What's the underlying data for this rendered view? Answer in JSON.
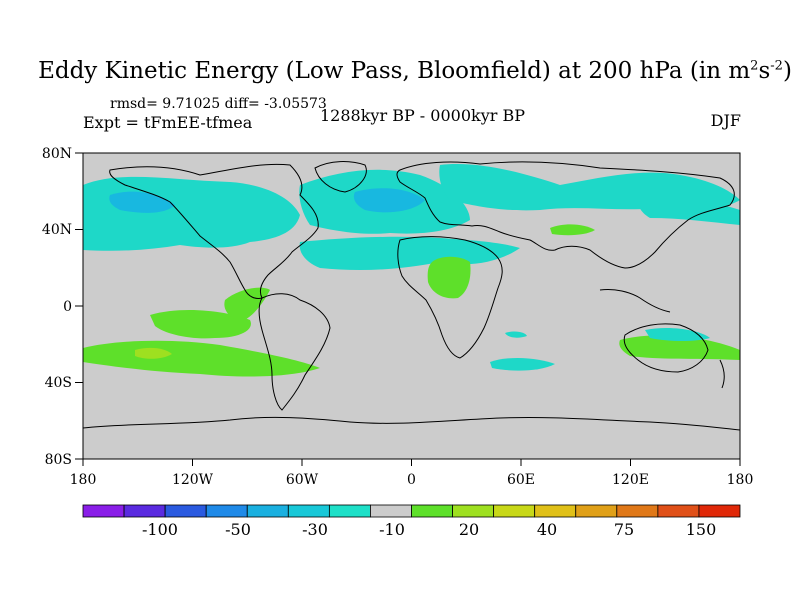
{
  "title": {
    "main": "Eddy Kinetic Energy (Low Pass, Bloomfield) at 200 hPa (in m",
    "sup1": "2",
    "mid": "s",
    "sup2": "-2",
    "end": ")"
  },
  "stats": "rmsd= 9.71025  diff= -3.05573",
  "experiment": "Expt = tFmEE-tfmea",
  "period": "1288kyr BP - 0000kyr BP",
  "season": "DJF",
  "axes": {
    "lat_labels": [
      "80N",
      "40N",
      "0",
      "40S",
      "80S"
    ],
    "lon_labels": [
      "180",
      "120W",
      "60W",
      "0",
      "60E",
      "120E",
      "180"
    ]
  },
  "colorbar": {
    "labels": [
      "-100",
      "-50",
      "-30",
      "-10",
      "20",
      "40",
      "75",
      "150"
    ],
    "colors": [
      "#8a1ee8",
      "#5a2ae0",
      "#2a5ae0",
      "#1f8ae8",
      "#1ab0e0",
      "#18c8d8",
      "#1ee0c8",
      "#cccccc",
      "#5ee02a",
      "#9ee020",
      "#c8d818",
      "#e0c018",
      "#e0a018",
      "#e07818",
      "#e05018",
      "#e02808"
    ]
  },
  "map": {
    "background": "#cccccc",
    "blob_cyan": "#1ed8c8",
    "blob_blue": "#18b8e0",
    "blob_green": "#5ee02a",
    "blob_lightgreen": "#9ee020"
  }
}
